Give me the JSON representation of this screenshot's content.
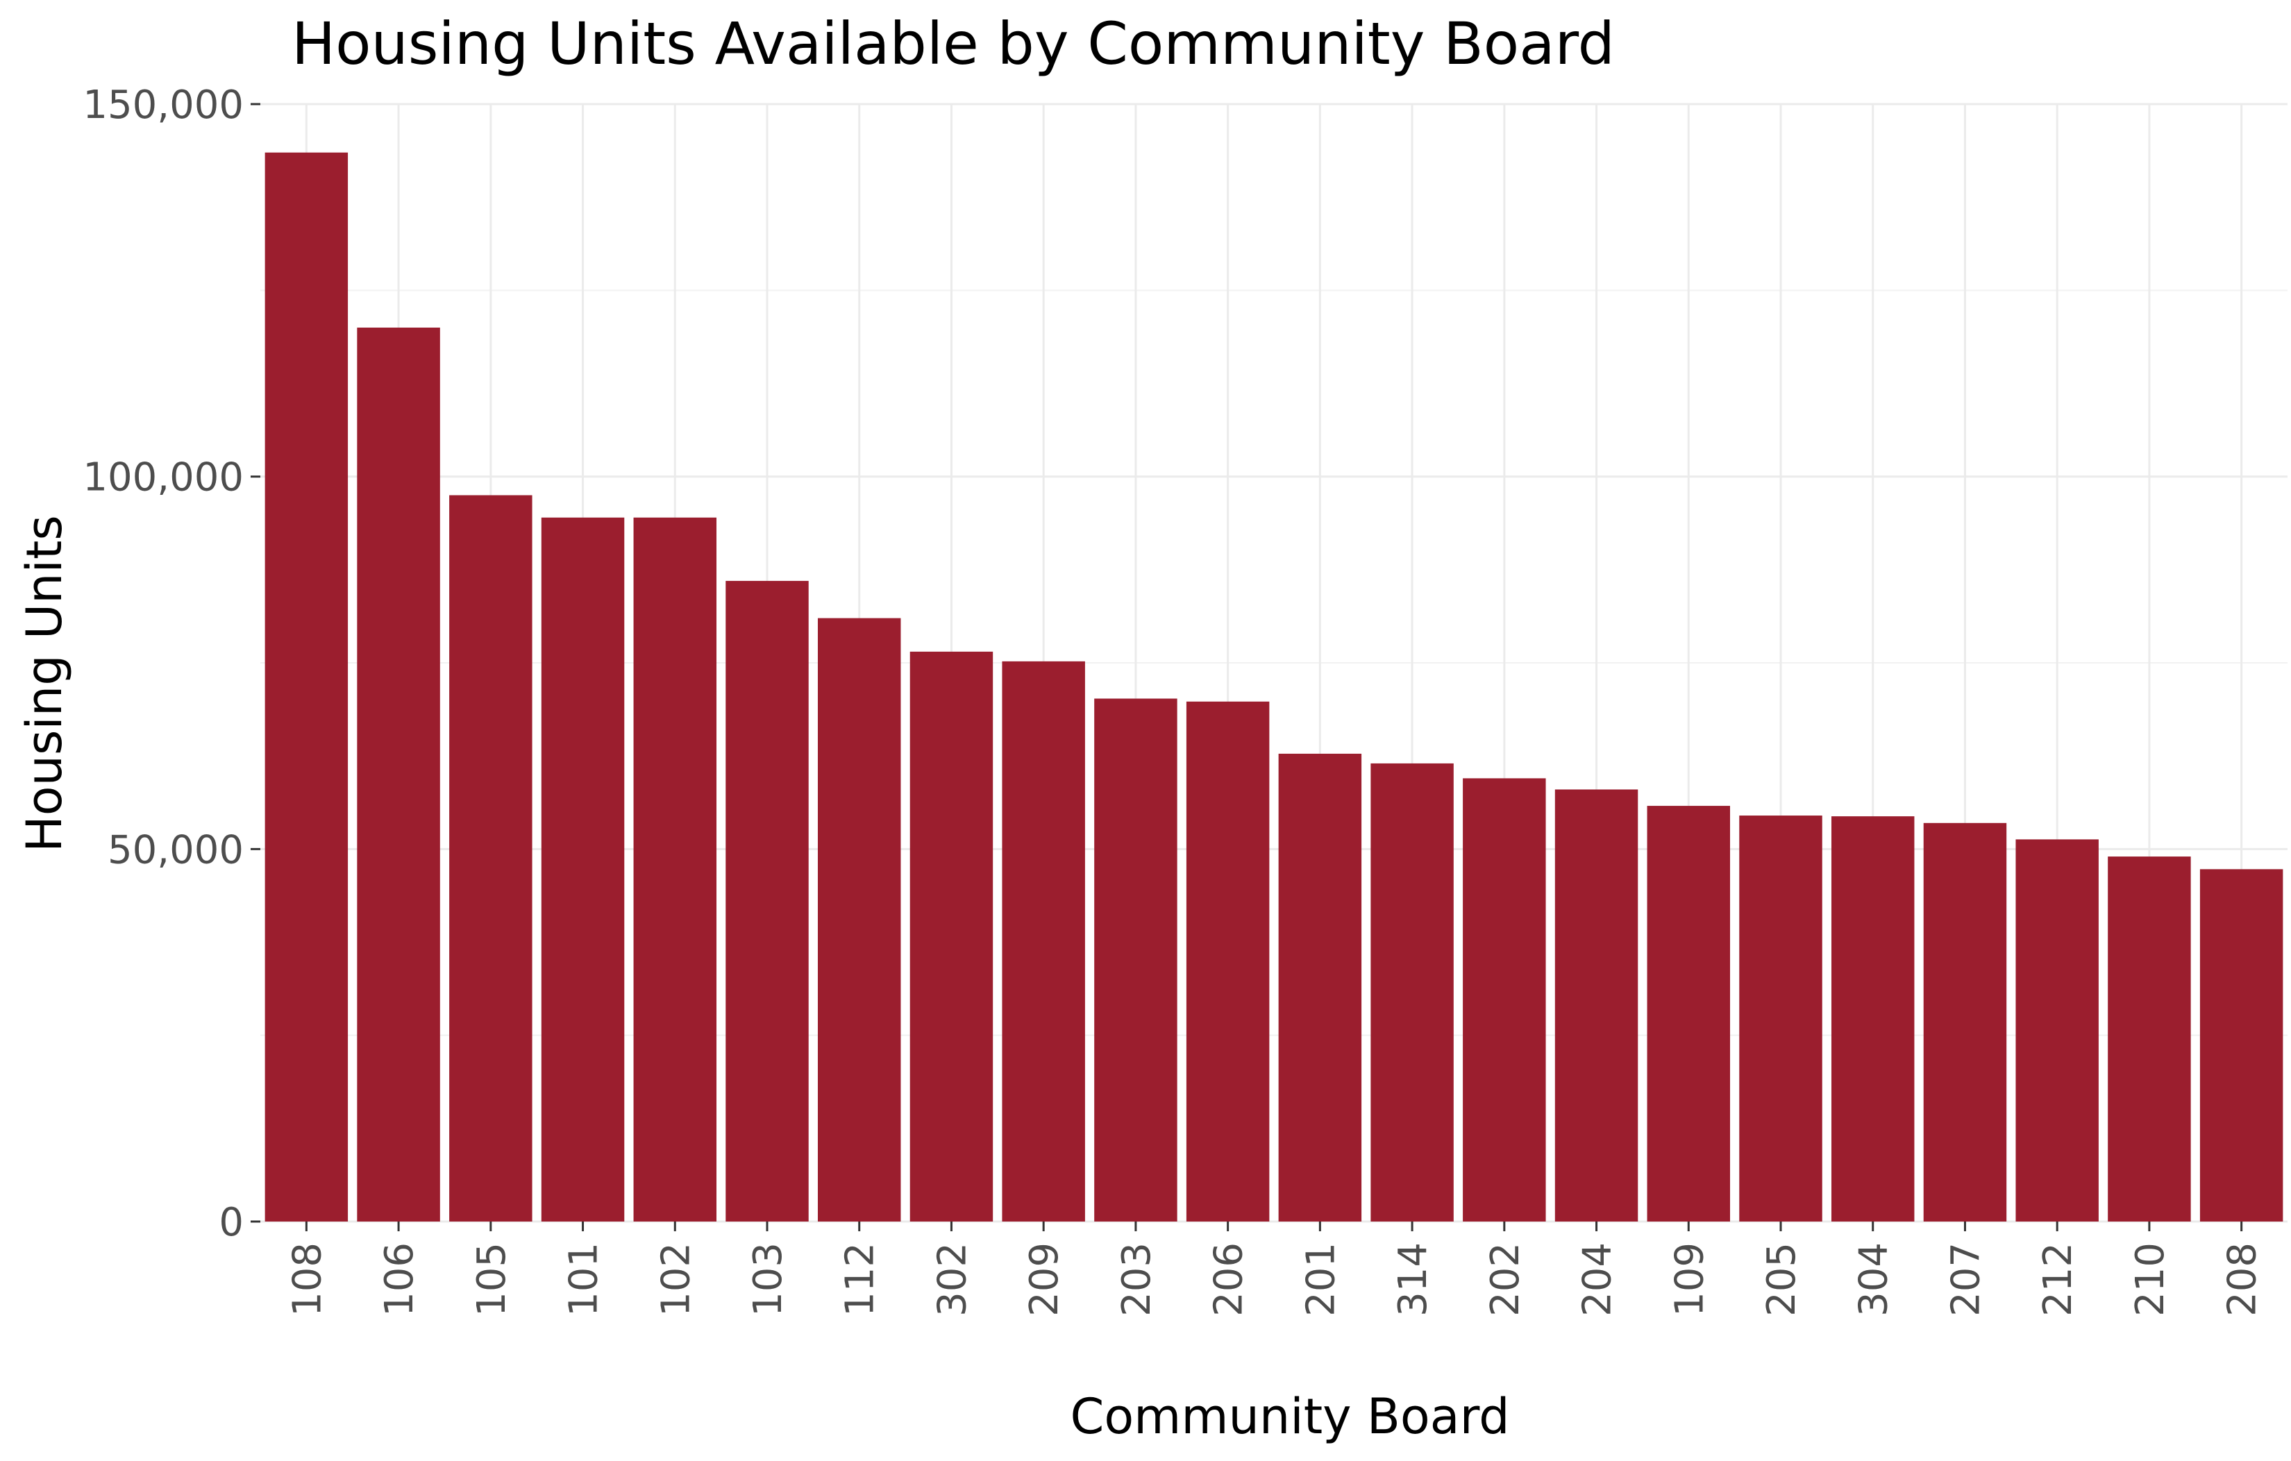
{
  "chart_data": {
    "type": "bar",
    "title": "Housing Units Available by Community Board",
    "xlabel": "Community Board",
    "ylabel": "Housing Units",
    "categories": [
      "108",
      "106",
      "105",
      "101",
      "102",
      "103",
      "112",
      "302",
      "209",
      "203",
      "206",
      "201",
      "314",
      "202",
      "204",
      "109",
      "205",
      "304",
      "207",
      "212",
      "210",
      "208"
    ],
    "values": [
      143500,
      120000,
      97500,
      94500,
      94500,
      86000,
      81000,
      76500,
      75200,
      70200,
      69800,
      62800,
      61500,
      59500,
      58000,
      55800,
      54500,
      54400,
      53500,
      51300,
      49000,
      47300
    ],
    "ylim": [
      0,
      150000
    ],
    "yticks": [
      0,
      50000,
      100000,
      150000
    ],
    "ytick_labels": [
      "0",
      "50,000",
      "100,000",
      "150,000"
    ],
    "grid": true,
    "colors": {
      "bar": "#9b1e2e"
    }
  }
}
